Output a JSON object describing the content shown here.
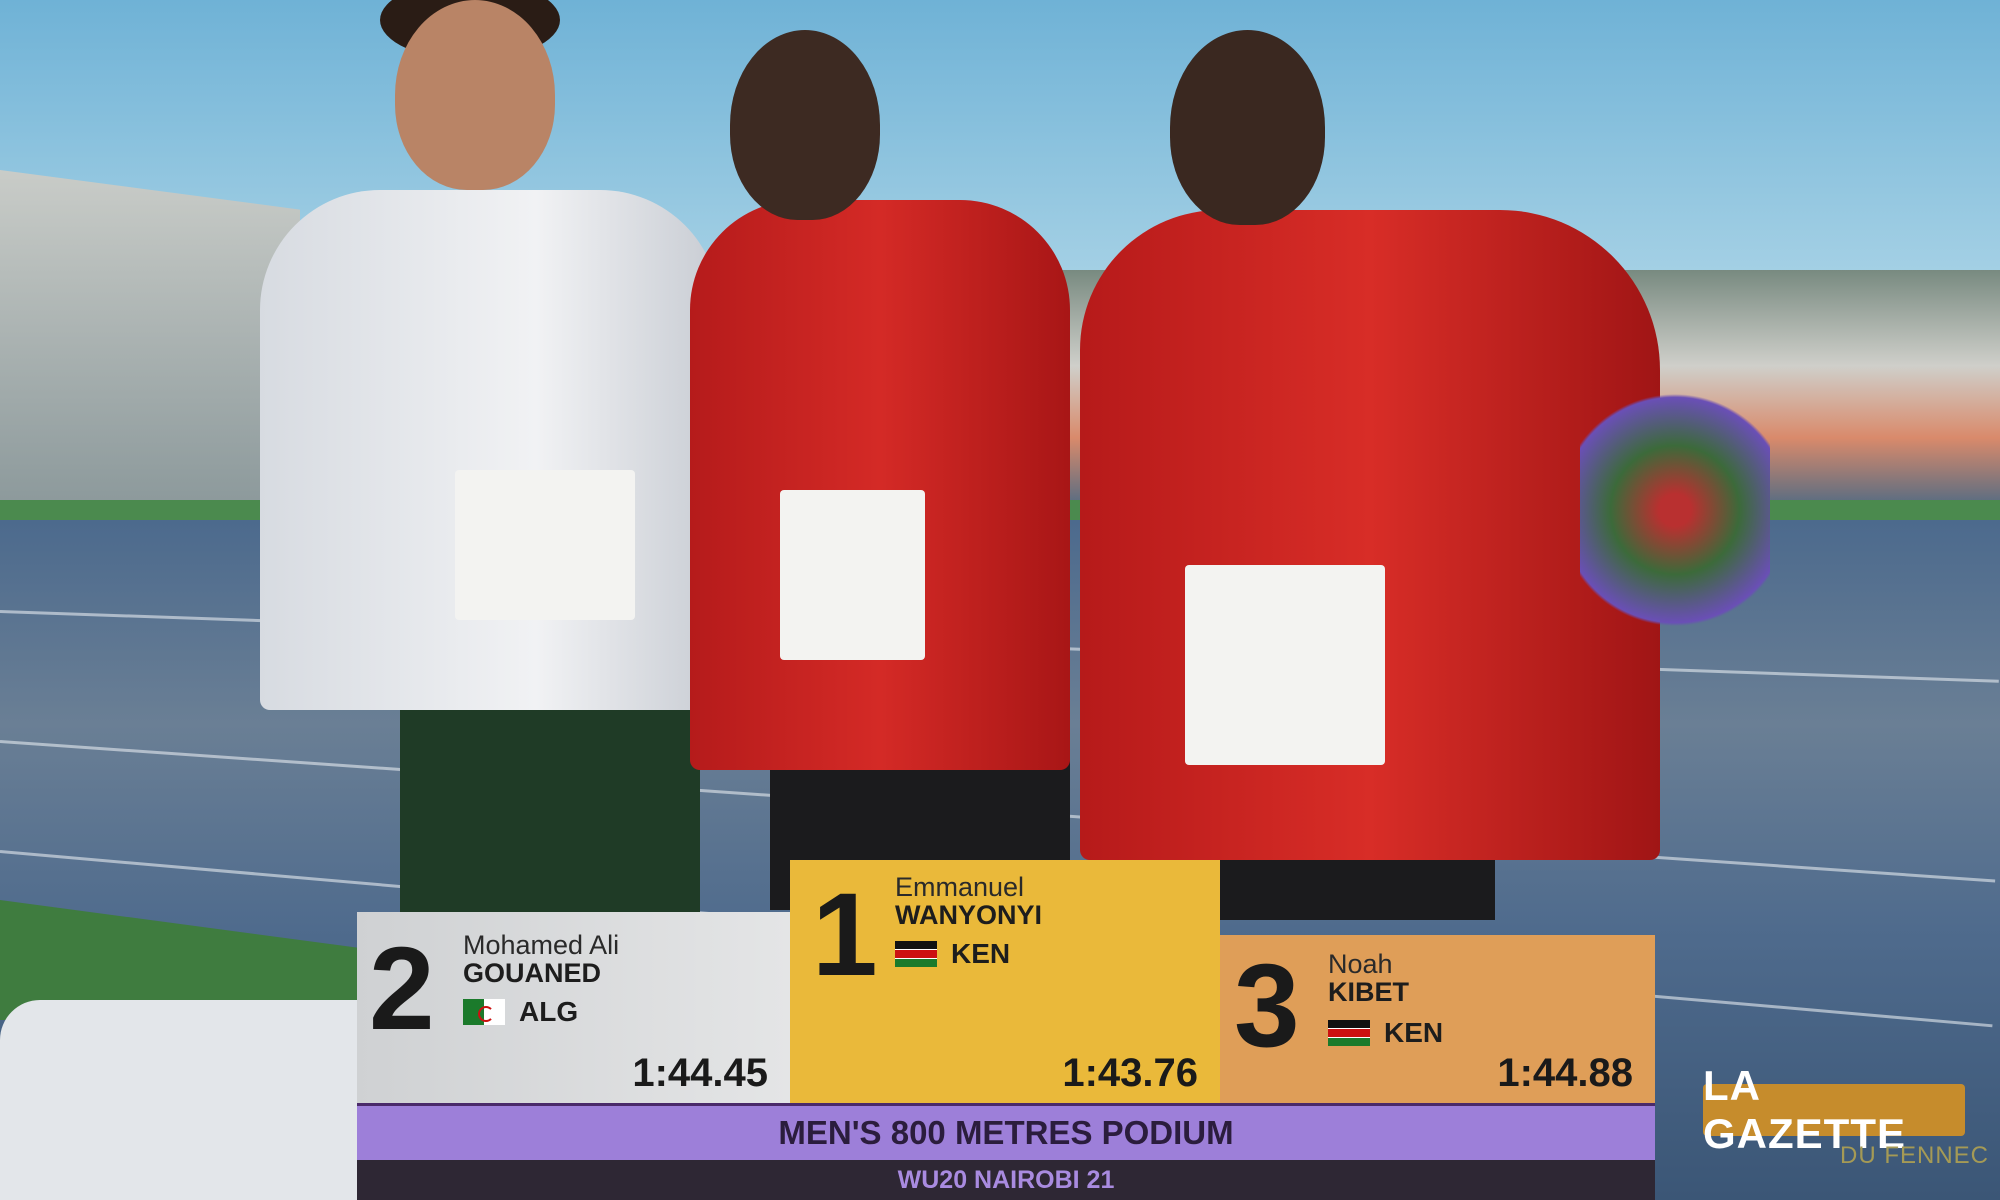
{
  "podium": [
    {
      "rank": "2",
      "first_name": "Mohamed Ali",
      "last_name": "GOUANED",
      "country": "ALG",
      "flag": "algeria-flag",
      "time": "1:44.45",
      "color": "#d9dadc"
    },
    {
      "rank": "1",
      "first_name": "Emmanuel",
      "last_name": "WANYONYI",
      "country": "KEN",
      "flag": "kenya-flag",
      "time": "1:43.76",
      "color": "#eab93a"
    },
    {
      "rank": "3",
      "first_name": "Noah",
      "last_name": "KIBET",
      "country": "KEN",
      "flag": "kenya-flag",
      "time": "1:44.88",
      "color": "#df9e58"
    }
  ],
  "event_title": "MEN'S 800 METRES  PODIUM",
  "event_subtitle": "WU20 NAIROBI 21",
  "watermark": {
    "title": "LA GAZETTE",
    "subtitle": "DU FENNEC",
    "color": "#c68c2c"
  },
  "accent_purple": "#9d7fd9"
}
